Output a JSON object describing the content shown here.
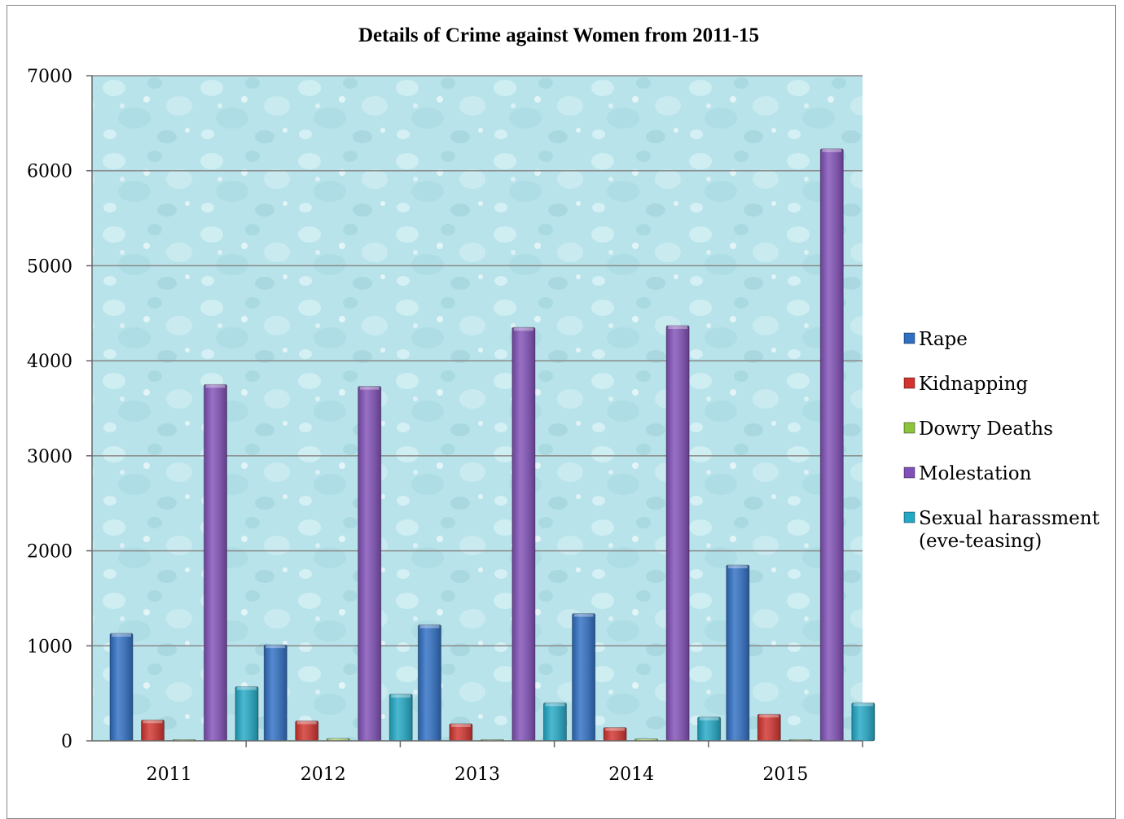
{
  "chart_data": {
    "type": "bar",
    "title": "Details of Crime against Women from 2011-15",
    "categories": [
      "2011",
      "2012",
      "2013",
      "2014",
      "2015"
    ],
    "ylim": [
      0,
      7000
    ],
    "yticks": [
      0,
      1000,
      2000,
      3000,
      4000,
      5000,
      6000,
      7000
    ],
    "grid": true,
    "legend_position": "right",
    "series": [
      {
        "name": "Rape",
        "color": "#2f6fc4",
        "values": [
          1130,
          1010,
          1220,
          1340,
          1850
        ]
      },
      {
        "name": "Kidnapping",
        "color": "#d2332e",
        "values": [
          220,
          210,
          180,
          140,
          280
        ]
      },
      {
        "name": "Dowry Deaths",
        "color": "#8cc43c",
        "values": [
          10,
          25,
          10,
          20,
          10
        ]
      },
      {
        "name": "Molestation",
        "color": "#8150b8",
        "values": [
          3750,
          3730,
          4350,
          4370,
          6230
        ]
      },
      {
        "name": "Sexual harassment (eve-teasing)",
        "color": "#22a9c6",
        "values": [
          570,
          490,
          400,
          250,
          400
        ]
      }
    ]
  }
}
